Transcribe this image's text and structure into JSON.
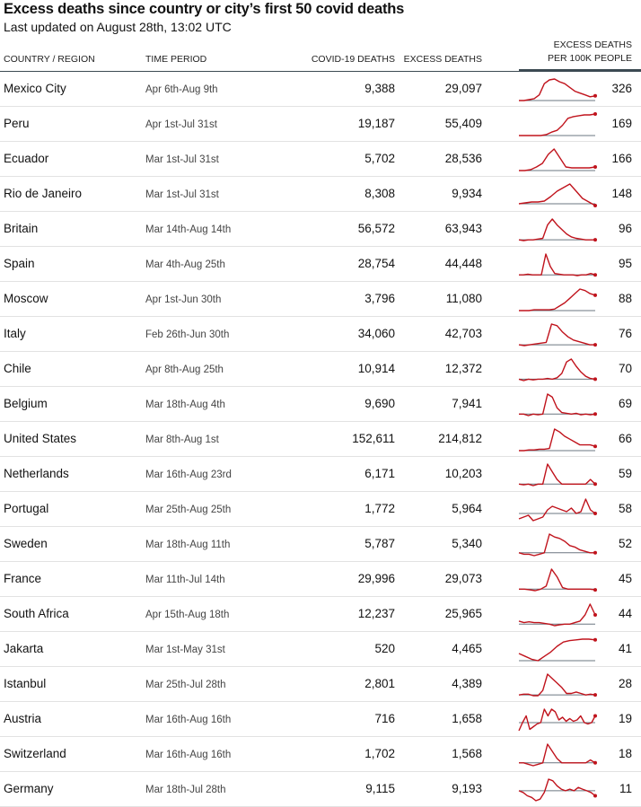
{
  "title": "Excess deaths since country or city’s first 50 covid deaths",
  "subtitle": "Last updated on August 28th, 13:02 UTC",
  "headers": {
    "country": "COUNTRY / REGION",
    "period": "TIME PERIOD",
    "covid": "COVID-19 DEATHS",
    "excess": "EXCESS DEATHS",
    "rate_line1": "EXCESS DEATHS",
    "rate_line2": "PER 100K PEOPLE"
  },
  "colors": {
    "line": "#c0131c",
    "baseline": "#6b7780"
  },
  "rows": [
    {
      "country": "Mexico City",
      "period": "Apr 6th-Aug 9th",
      "covid": "9,388",
      "excess": "29,097",
      "rate": "326",
      "trend": [
        0,
        0,
        0.5,
        1,
        3,
        9,
        11,
        11.5,
        10,
        9,
        7,
        5,
        4,
        3,
        2,
        2.5
      ]
    },
    {
      "country": "Peru",
      "period": "Apr 1st-Jul 31st",
      "covid": "19,187",
      "excess": "55,409",
      "rate": "169",
      "trend": [
        0,
        0,
        0,
        0,
        0,
        0.5,
        2,
        3,
        6,
        10,
        11,
        11.5,
        12,
        12,
        12.5
      ]
    },
    {
      "country": "Ecuador",
      "period": "Mar 1st-Jul 31st",
      "covid": "5,702",
      "excess": "28,536",
      "rate": "166",
      "trend": [
        0,
        0,
        0.5,
        2,
        4,
        9,
        12,
        7,
        2,
        1.5,
        1.5,
        1.5,
        1.5,
        2
      ]
    },
    {
      "country": "Rio de Janeiro",
      "period": "Mar 1st-Jul 31st",
      "covid": "8,308",
      "excess": "9,934",
      "rate": "148",
      "trend": [
        0,
        0.5,
        1,
        1,
        1.5,
        4,
        7,
        9,
        11,
        7,
        3,
        1,
        -1
      ]
    },
    {
      "country": "Britain",
      "period": "Mar 14th-Aug 14th",
      "covid": "56,572",
      "excess": "63,943",
      "rate": "96",
      "trend": [
        0,
        -0.5,
        0,
        0,
        0.5,
        1,
        10,
        14,
        10,
        7,
        4,
        2,
        1,
        0.5,
        0,
        0,
        0
      ]
    },
    {
      "country": "Spain",
      "period": "Mar 4th-Aug 25th",
      "covid": "28,754",
      "excess": "44,448",
      "rate": "95",
      "trend": [
        0,
        0,
        0.5,
        0,
        0,
        0,
        15,
        6,
        1,
        0.5,
        0,
        0,
        0,
        -0.5,
        0,
        0,
        1,
        0
      ]
    },
    {
      "country": "Moscow",
      "period": "Apr 1st-Jun 30th",
      "covid": "3,796",
      "excess": "11,080",
      "rate": "88",
      "trend": [
        0,
        0,
        0,
        0.5,
        0.5,
        0.5,
        0.5,
        1,
        3,
        5,
        8,
        11,
        14,
        13,
        11,
        10
      ]
    },
    {
      "country": "Italy",
      "period": "Feb 26th-Jun 30th",
      "covid": "34,060",
      "excess": "42,703",
      "rate": "76",
      "trend": [
        0,
        -0.5,
        0,
        0.5,
        1,
        1.5,
        13,
        12,
        8,
        5,
        3,
        2,
        1,
        0,
        0
      ]
    },
    {
      "country": "Chile",
      "period": "Apr 8th-Aug 25th",
      "covid": "10,914",
      "excess": "12,372",
      "rate": "70",
      "trend": [
        0,
        -1,
        0,
        -0.5,
        0,
        0,
        0.5,
        0,
        1,
        4,
        12,
        14,
        9,
        5,
        2,
        0.5,
        0
      ]
    },
    {
      "country": "Belgium",
      "period": "Mar 18th-Aug 4th",
      "covid": "9,690",
      "excess": "7,941",
      "rate": "69",
      "trend": [
        0,
        0,
        -1,
        0,
        -0.5,
        0,
        13,
        11,
        4,
        1,
        0.5,
        0,
        0.5,
        -0.5,
        0,
        -0.5,
        0
      ]
    },
    {
      "country": "United States",
      "period": "Mar 8th-Aug 1st",
      "covid": "152,611",
      "excess": "214,812",
      "rate": "66",
      "trend": [
        0,
        0,
        0.5,
        0.5,
        1,
        1,
        1.5,
        15,
        13,
        10,
        8,
        6,
        4,
        4,
        4,
        3
      ]
    },
    {
      "country": "Netherlands",
      "period": "Mar 16th-Aug 23rd",
      "covid": "6,171",
      "excess": "10,203",
      "rate": "59",
      "trend": [
        0,
        -0.5,
        0,
        -1,
        0,
        0,
        13,
        8,
        3,
        0,
        0,
        0,
        0,
        0,
        0,
        3,
        0
      ]
    },
    {
      "country": "Portugal",
      "period": "Mar 25th-Aug 25th",
      "covid": "1,772",
      "excess": "5,964",
      "rate": "58",
      "trend": [
        -3,
        -2,
        -1,
        -4,
        -3,
        -2,
        2,
        4,
        3,
        2,
        1,
        3,
        0,
        1,
        8,
        2,
        0
      ]
    },
    {
      "country": "Sweden",
      "period": "Mar 18th-Aug 11th",
      "covid": "5,787",
      "excess": "5,340",
      "rate": "52",
      "trend": [
        0,
        -1,
        -1,
        -2,
        -1,
        0,
        13,
        11,
        10,
        8,
        5,
        4,
        2,
        1,
        0,
        0
      ]
    },
    {
      "country": "France",
      "period": "Mar 11th-Jul 14th",
      "covid": "29,996",
      "excess": "29,073",
      "rate": "45",
      "trend": [
        0,
        0,
        -0.5,
        -1,
        0,
        2,
        13,
        8,
        1,
        0,
        0,
        0,
        0,
        0,
        -0.5
      ]
    },
    {
      "country": "South Africa",
      "period": "Apr 15th-Aug 18th",
      "covid": "12,237",
      "excess": "25,965",
      "rate": "44",
      "trend": [
        2,
        1,
        1.5,
        1,
        1,
        0.5,
        0,
        -1,
        -0.5,
        0,
        0,
        1,
        2,
        6,
        13,
        6
      ]
    },
    {
      "country": "Jakarta",
      "period": "Mar 1st-May 31st",
      "covid": "520",
      "excess": "4,465",
      "rate": "41",
      "trend": [
        5,
        3,
        1,
        0,
        3,
        6,
        10,
        13,
        14,
        14.5,
        15,
        15,
        14.5
      ]
    },
    {
      "country": "Istanbul",
      "period": "Mar 25th-Jul 28th",
      "covid": "2,801",
      "excess": "4,389",
      "rate": "28",
      "trend": [
        0,
        0.5,
        0.5,
        -0.5,
        -0.5,
        3,
        14,
        11,
        8,
        5,
        1,
        1,
        2,
        1,
        0,
        0.5,
        0
      ]
    },
    {
      "country": "Austria",
      "period": "Mar 16th-Aug 16th",
      "covid": "716",
      "excess": "1,658",
      "rate": "19",
      "trend": [
        -6,
        0,
        5,
        -5,
        -3,
        -1,
        0,
        10,
        5,
        10,
        8,
        2,
        4,
        1,
        3,
        1,
        2,
        5,
        0,
        -1,
        0,
        5
      ]
    },
    {
      "country": "Switzerland",
      "period": "Mar 16th-Aug 16th",
      "covid": "1,702",
      "excess": "1,568",
      "rate": "18",
      "trend": [
        0,
        0,
        -1,
        -2,
        -1,
        0,
        13,
        8,
        3,
        0,
        0,
        0,
        0,
        0,
        0,
        2,
        0
      ]
    },
    {
      "country": "Germany",
      "period": "Mar 18th-Jul 28th",
      "covid": "9,115",
      "excess": "9,193",
      "rate": "11",
      "trend": [
        0,
        -1,
        -3,
        -4,
        -6,
        -5,
        -1,
        7,
        6,
        3,
        1,
        0,
        1,
        0,
        2,
        1,
        0,
        -1,
        -3
      ]
    }
  ]
}
